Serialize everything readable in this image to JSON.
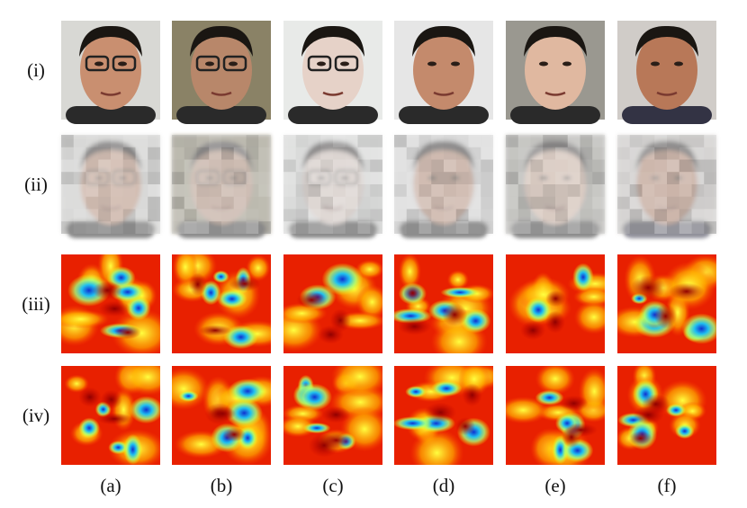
{
  "row_labels": [
    "(i)",
    "(ii)",
    "(iii)",
    "(iv)"
  ],
  "column_labels": [
    "(a)",
    "(b)",
    "(c)",
    "(d)",
    "(e)",
    "(f)"
  ]
}
